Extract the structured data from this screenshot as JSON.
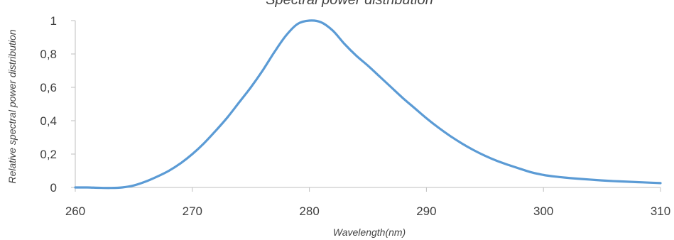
{
  "chart_data": {
    "type": "line",
    "title": "Spectral power distribution",
    "xlabel": "Wavelength(nm)",
    "ylabel": "Relative spectral power distribution",
    "xlim": [
      260,
      310
    ],
    "ylim": [
      0,
      1
    ],
    "x_ticks": [
      260,
      270,
      280,
      290,
      300,
      310
    ],
    "y_ticks": [
      0,
      0.2,
      0.4,
      0.6,
      0.8,
      1
    ],
    "y_tick_labels": [
      "0",
      "0,2",
      "0,4",
      "0,6",
      "0,8",
      "1"
    ],
    "x_tick_labels": [
      "260",
      "270",
      "280",
      "290",
      "300",
      "310"
    ],
    "grid": false,
    "legend": "none",
    "colors": {
      "series": "#5b9bd5",
      "axis": "#bfbfbf",
      "text": "#3f3f3f"
    },
    "series": [
      {
        "x": [
          260,
          261,
          262,
          263,
          264,
          265,
          266,
          267,
          268,
          269,
          270,
          271,
          272,
          273,
          274,
          275,
          276,
          277,
          278,
          279,
          280,
          281,
          282,
          283,
          284,
          285,
          286,
          287,
          288,
          289,
          290,
          291,
          292,
          293,
          294,
          295,
          296,
          297,
          298,
          299,
          300,
          301,
          302,
          303,
          304,
          305,
          306,
          307,
          308,
          309,
          310
        ],
        "values": [
          0.0,
          0.0,
          -0.002,
          -0.003,
          0.0,
          0.012,
          0.035,
          0.065,
          0.1,
          0.145,
          0.2,
          0.265,
          0.34,
          0.42,
          0.51,
          0.6,
          0.7,
          0.81,
          0.91,
          0.98,
          1.0,
          0.99,
          0.94,
          0.86,
          0.79,
          0.73,
          0.665,
          0.6,
          0.535,
          0.475,
          0.415,
          0.36,
          0.31,
          0.265,
          0.225,
          0.19,
          0.16,
          0.135,
          0.112,
          0.09,
          0.075,
          0.065,
          0.058,
          0.052,
          0.047,
          0.042,
          0.038,
          0.035,
          0.032,
          0.029,
          0.026
        ]
      }
    ]
  }
}
